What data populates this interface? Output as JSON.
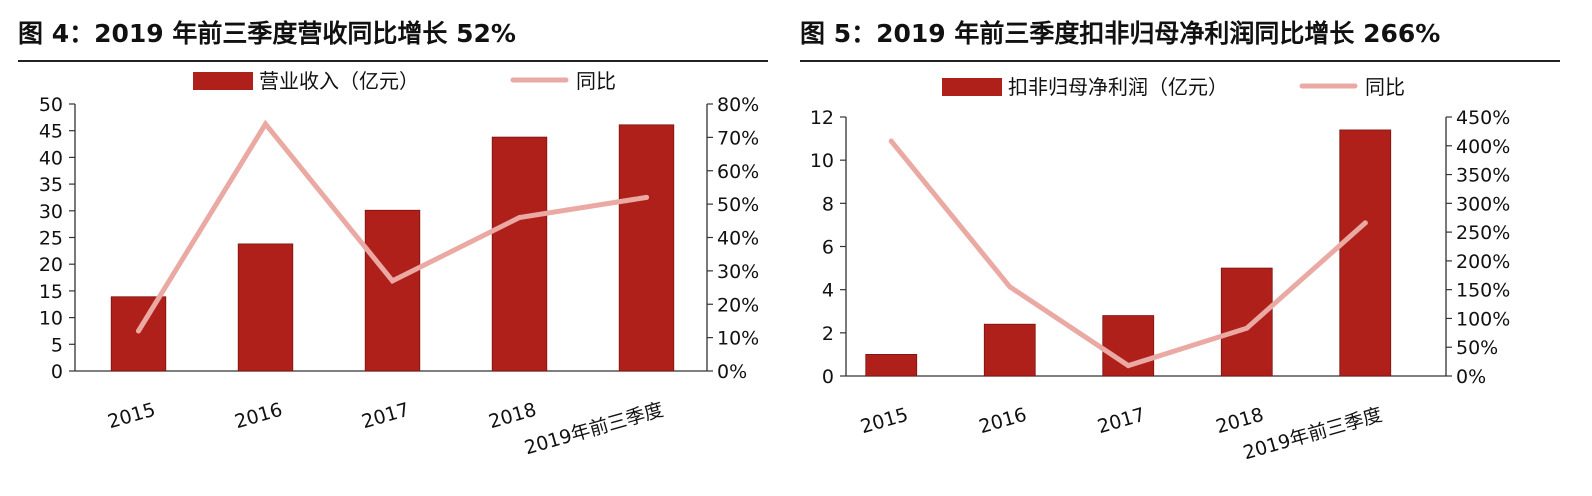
{
  "chart_data": [
    {
      "type": "bar",
      "title": "图 4：2019 年前三季度营收同比增长 52%",
      "categories": [
        "2015",
        "2016",
        "2017",
        "2018",
        "2019年前三季度"
      ],
      "series": [
        {
          "name": "营业收入（亿元）",
          "type": "bar",
          "axis": "left",
          "values": [
            13.9,
            23.8,
            30.1,
            43.8,
            46.1
          ]
        },
        {
          "name": "同比",
          "type": "line",
          "axis": "right",
          "values": [
            12,
            74,
            27,
            46,
            52
          ]
        }
      ],
      "ylim": [
        0,
        50
      ],
      "yticks": [
        "0",
        "5",
        "10",
        "15",
        "20",
        "25",
        "30",
        "35",
        "40",
        "45",
        "50"
      ],
      "y2lim": [
        0,
        80
      ],
      "y2ticks": [
        "0%",
        "10%",
        "20%",
        "30%",
        "40%",
        "50%",
        "60%",
        "70%",
        "80%"
      ],
      "legend": "top",
      "grid": false,
      "colors": {
        "bar": "#b0201b",
        "line": "#eaa9a2"
      }
    },
    {
      "type": "bar",
      "title": "图 5：2019 年前三季度扣非归母净利润同比增长 266%",
      "categories": [
        "2015",
        "2016",
        "2017",
        "2018",
        "2019年前三季度"
      ],
      "series": [
        {
          "name": "扣非归母净利润（亿元）",
          "type": "bar",
          "axis": "left",
          "values": [
            1.0,
            2.4,
            2.8,
            5.0,
            11.4
          ]
        },
        {
          "name": "同比",
          "type": "line",
          "axis": "right",
          "values": [
            408,
            155,
            18,
            83,
            266
          ]
        }
      ],
      "ylim": [
        0,
        12
      ],
      "yticks": [
        "0",
        "2",
        "4",
        "6",
        "8",
        "10",
        "12"
      ],
      "y2lim": [
        0,
        450
      ],
      "y2ticks": [
        "0%",
        "50%",
        "100%",
        "150%",
        "200%",
        "250%",
        "300%",
        "350%",
        "400%",
        "450%"
      ],
      "legend": "top",
      "grid": false,
      "colors": {
        "bar": "#b0201b",
        "line": "#eaa9a2"
      }
    }
  ]
}
